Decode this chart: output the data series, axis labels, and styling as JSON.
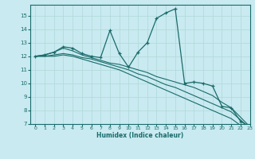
{
  "xlabel": "Humidex (Indice chaleur)",
  "bg_color": "#c8eaf0",
  "grid_color": "#b0d8d8",
  "line_color": "#1a6b6b",
  "xlim": [
    -0.5,
    23
  ],
  "ylim": [
    7,
    15.8
  ],
  "yticks": [
    7,
    8,
    9,
    10,
    11,
    12,
    13,
    14,
    15
  ],
  "xticks": [
    0,
    1,
    2,
    3,
    4,
    5,
    6,
    7,
    8,
    9,
    10,
    11,
    12,
    13,
    14,
    15,
    16,
    17,
    18,
    19,
    20,
    21,
    22,
    23
  ],
  "series1": [
    [
      0,
      12.0
    ],
    [
      1,
      12.1
    ],
    [
      2,
      12.3
    ],
    [
      3,
      12.7
    ],
    [
      4,
      12.6
    ],
    [
      5,
      12.2
    ],
    [
      6,
      12.0
    ],
    [
      7,
      11.9
    ],
    [
      8,
      13.9
    ],
    [
      9,
      12.2
    ],
    [
      10,
      11.2
    ],
    [
      11,
      12.3
    ],
    [
      12,
      13.0
    ],
    [
      13,
      14.8
    ],
    [
      14,
      15.2
    ],
    [
      15,
      15.5
    ],
    [
      16,
      10.0
    ],
    [
      17,
      10.1
    ],
    [
      18,
      10.0
    ],
    [
      19,
      9.8
    ],
    [
      20,
      8.3
    ],
    [
      21,
      8.2
    ],
    [
      22,
      7.2
    ],
    [
      23,
      6.8
    ]
  ],
  "series2": [
    [
      0,
      12.0
    ],
    [
      1,
      12.1
    ],
    [
      2,
      12.3
    ],
    [
      3,
      12.6
    ],
    [
      4,
      12.4
    ],
    [
      5,
      12.1
    ],
    [
      6,
      11.9
    ],
    [
      7,
      11.7
    ],
    [
      8,
      11.5
    ],
    [
      9,
      11.4
    ],
    [
      10,
      11.2
    ],
    [
      11,
      11.0
    ],
    [
      12,
      10.8
    ],
    [
      13,
      10.5
    ],
    [
      14,
      10.3
    ],
    [
      15,
      10.1
    ],
    [
      16,
      9.9
    ],
    [
      17,
      9.7
    ],
    [
      18,
      9.4
    ],
    [
      19,
      9.1
    ],
    [
      20,
      8.6
    ],
    [
      21,
      8.2
    ],
    [
      22,
      7.5
    ],
    [
      23,
      6.8
    ]
  ],
  "series3": [
    [
      0,
      12.0
    ],
    [
      1,
      12.0
    ],
    [
      2,
      12.1
    ],
    [
      3,
      12.2
    ],
    [
      4,
      12.1
    ],
    [
      5,
      11.9
    ],
    [
      6,
      11.8
    ],
    [
      7,
      11.6
    ],
    [
      8,
      11.4
    ],
    [
      9,
      11.2
    ],
    [
      10,
      11.0
    ],
    [
      11,
      10.7
    ],
    [
      12,
      10.5
    ],
    [
      13,
      10.2
    ],
    [
      14,
      9.9
    ],
    [
      15,
      9.7
    ],
    [
      16,
      9.4
    ],
    [
      17,
      9.1
    ],
    [
      18,
      8.8
    ],
    [
      19,
      8.5
    ],
    [
      20,
      8.2
    ],
    [
      21,
      7.9
    ],
    [
      22,
      7.3
    ],
    [
      23,
      6.7
    ]
  ],
  "series4": [
    [
      0,
      12.0
    ],
    [
      1,
      12.0
    ],
    [
      2,
      12.0
    ],
    [
      3,
      12.1
    ],
    [
      4,
      12.0
    ],
    [
      5,
      11.8
    ],
    [
      6,
      11.6
    ],
    [
      7,
      11.4
    ],
    [
      8,
      11.2
    ],
    [
      9,
      11.0
    ],
    [
      10,
      10.7
    ],
    [
      11,
      10.4
    ],
    [
      12,
      10.1
    ],
    [
      13,
      9.8
    ],
    [
      14,
      9.5
    ],
    [
      15,
      9.2
    ],
    [
      16,
      8.9
    ],
    [
      17,
      8.6
    ],
    [
      18,
      8.3
    ],
    [
      19,
      8.0
    ],
    [
      20,
      7.7
    ],
    [
      21,
      7.4
    ],
    [
      22,
      6.9
    ],
    [
      23,
      6.5
    ]
  ]
}
